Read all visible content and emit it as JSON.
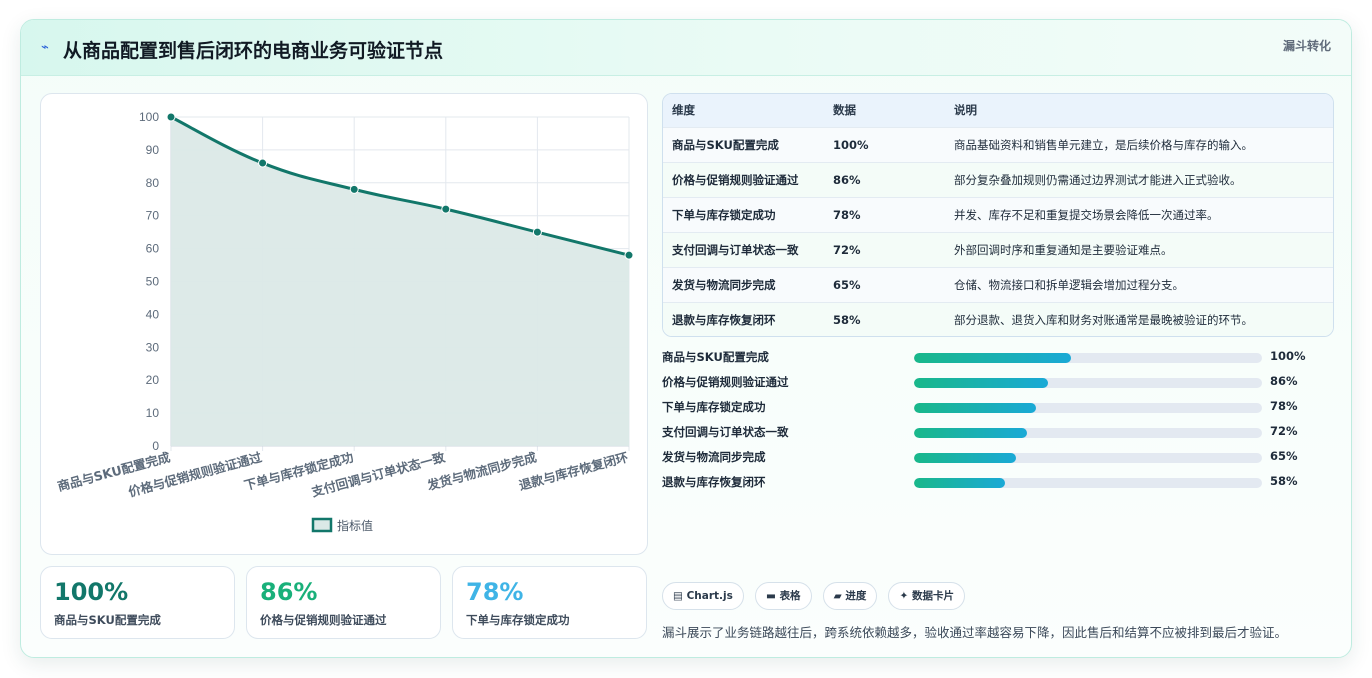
{
  "header": {
    "icon": "lightning-icon",
    "title": "从商品配置到售后闭环的电商业务可验证节点",
    "tag": "漏斗转化"
  },
  "chart_data": {
    "type": "line",
    "categories": [
      "商品与SKU配置完成",
      "价格与促销规则验证通过",
      "下单与库存锁定成功",
      "支付回调与订单状态一致",
      "发货与物流同步完成",
      "退款与库存恢复闭环"
    ],
    "series": [
      {
        "name": "指标值",
        "values": [
          100,
          86,
          78,
          72,
          65,
          58
        ]
      }
    ],
    "yticks": [
      "0",
      "10",
      "20",
      "30",
      "40",
      "50",
      "60",
      "70",
      "80",
      "90",
      "100"
    ],
    "ylim": [
      0,
      100
    ],
    "grid": true,
    "legend": "bottom",
    "line_color": "#12776a",
    "fill_color": "#dbe9e7"
  },
  "table": {
    "headers": [
      "维度",
      "数据",
      "说明"
    ],
    "rows": [
      [
        "商品与SKU配置完成",
        "100%",
        "商品基础资料和销售单元建立，是后续价格与库存的输入。"
      ],
      [
        "价格与促销规则验证通过",
        "86%",
        "部分复杂叠加规则仍需通过边界测试才能进入正式验收。"
      ],
      [
        "下单与库存锁定成功",
        "78%",
        "并发、库存不足和重复提交场景会降低一次通过率。"
      ],
      [
        "支付回调与订单状态一致",
        "72%",
        "外部回调时序和重复通知是主要验证难点。"
      ],
      [
        "发货与物流同步完成",
        "65%",
        "仓储、物流接口和拆单逻辑会增加过程分支。"
      ],
      [
        "退款与库存恢复闭环",
        "58%",
        "部分退款、退货入库和财务对账通常是最晚被验证的环节。"
      ]
    ]
  },
  "progress": [
    {
      "label": "商品与SKU配置完成",
      "value": "100%",
      "fraction": 0.45
    },
    {
      "label": "价格与促销规则验证通过",
      "value": "86%",
      "fraction": 0.386
    },
    {
      "label": "下单与库存锁定成功",
      "value": "78%",
      "fraction": 0.35
    },
    {
      "label": "支付回调与订单状态一致",
      "value": "72%",
      "fraction": 0.324
    },
    {
      "label": "发货与物流同步完成",
      "value": "65%",
      "fraction": 0.293
    },
    {
      "label": "退款与库存恢复闭环",
      "value": "58%",
      "fraction": 0.261
    }
  ],
  "stats": [
    {
      "value": "100%",
      "label": "商品与SKU配置完成",
      "color": "#12776a"
    },
    {
      "value": "86%",
      "label": "价格与促销规则验证通过",
      "color": "#19b07a"
    },
    {
      "value": "78%",
      "label": "下单与库存锁定成功",
      "color": "#3fb4e6"
    }
  ],
  "chips": [
    {
      "icon": "chart-icon",
      "glyph": "▤",
      "label": "Chart.js"
    },
    {
      "icon": "table-icon",
      "glyph": "▬",
      "label": "表格"
    },
    {
      "icon": "progress-icon",
      "glyph": "▰",
      "label": "进度"
    },
    {
      "icon": "sparkle-icon",
      "glyph": "✦",
      "label": "数据卡片"
    }
  ],
  "footer": "漏斗展示了业务链路越往后，跨系统依赖越多，验收通过率越容易下降，因此售后和结算不应被排到最后才验证。"
}
